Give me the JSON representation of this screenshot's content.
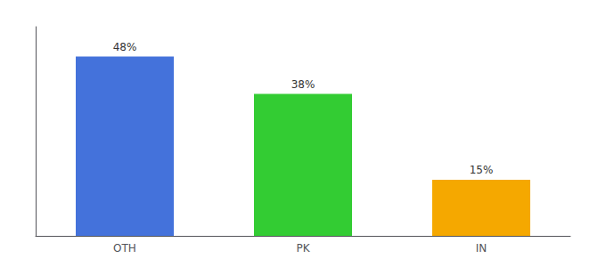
{
  "chart_data": {
    "type": "bar",
    "categories": [
      "OTH",
      "PK",
      "IN"
    ],
    "values": [
      48,
      38,
      15
    ],
    "value_labels": [
      "48%",
      "38%",
      "15%"
    ],
    "data_labels": true,
    "colors": [
      "#4472db",
      "#33cc33",
      "#f5a800"
    ],
    "ylim": [
      0,
      56
    ],
    "tick_labels": "x",
    "grid": false
  }
}
